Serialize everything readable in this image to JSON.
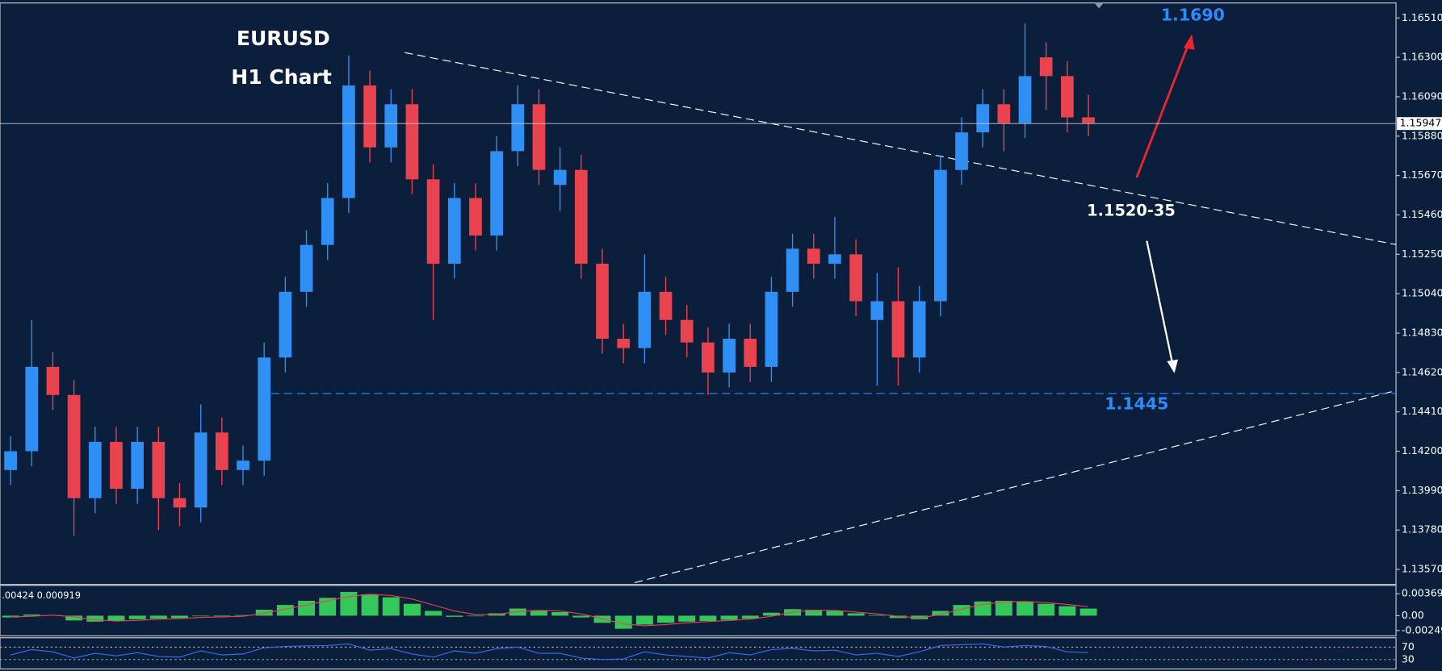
{
  "chart_data": {
    "type": "candlestick",
    "title": "EURUSD",
    "subtitle": "H1 Chart",
    "open": [
      1.141,
      1.142,
      1.1465,
      1.145,
      1.1395,
      1.1425,
      1.14,
      1.1425,
      1.1395,
      1.139,
      1.143,
      1.141,
      1.1415,
      1.147,
      1.1505,
      1.153,
      1.1555,
      1.1615,
      1.1582,
      1.1605,
      1.1565,
      1.152,
      1.1555,
      1.1535,
      1.158,
      1.1605,
      1.1562,
      1.157,
      1.152,
      1.148,
      1.1475,
      1.1505,
      1.149,
      1.1478,
      1.1462,
      1.148,
      1.1465,
      1.1505,
      1.1528,
      1.152,
      1.1525,
      1.149,
      1.15,
      1.147,
      1.15,
      1.157,
      1.159,
      1.1605,
      1.1595,
      1.163,
      1.162,
      1.1598
    ],
    "high": [
      1.1428,
      1.149,
      1.1473,
      1.1458,
      1.1433,
      1.1433,
      1.1433,
      1.1433,
      1.1403,
      1.1445,
      1.1438,
      1.1423,
      1.1478,
      1.1513,
      1.1538,
      1.1563,
      1.1631,
      1.1623,
      1.1613,
      1.1613,
      1.1573,
      1.1563,
      1.1563,
      1.1588,
      1.1615,
      1.1613,
      1.1582,
      1.1578,
      1.1528,
      1.1488,
      1.1525,
      1.1513,
      1.1498,
      1.1486,
      1.1488,
      1.1488,
      1.1513,
      1.1536,
      1.1536,
      1.1545,
      1.1533,
      1.1515,
      1.1518,
      1.1508,
      1.1578,
      1.1598,
      1.1613,
      1.1613,
      1.1648,
      1.1638,
      1.1628,
      1.161
    ],
    "low": [
      1.1402,
      1.1412,
      1.1442,
      1.1375,
      1.1387,
      1.1392,
      1.1392,
      1.1378,
      1.138,
      1.1382,
      1.1402,
      1.1402,
      1.1407,
      1.1462,
      1.1497,
      1.1522,
      1.1547,
      1.1574,
      1.1574,
      1.1557,
      1.149,
      1.1512,
      1.1527,
      1.1527,
      1.1572,
      1.1562,
      1.1548,
      1.1512,
      1.1472,
      1.1467,
      1.1467,
      1.1482,
      1.147,
      1.145,
      1.1454,
      1.1457,
      1.1457,
      1.1497,
      1.1512,
      1.1512,
      1.1492,
      1.1455,
      1.1455,
      1.1462,
      1.1492,
      1.1562,
      1.1582,
      1.158,
      1.1587,
      1.1602,
      1.159,
      1.1588
    ],
    "close": [
      1.142,
      1.1465,
      1.145,
      1.1395,
      1.1425,
      1.14,
      1.1425,
      1.1395,
      1.139,
      1.143,
      1.141,
      1.1415,
      1.147,
      1.1505,
      1.153,
      1.1555,
      1.1615,
      1.1582,
      1.1605,
      1.1565,
      1.152,
      1.1555,
      1.1535,
      1.158,
      1.1605,
      1.157,
      1.157,
      1.152,
      1.148,
      1.1475,
      1.1505,
      1.149,
      1.1478,
      1.1462,
      1.148,
      1.1465,
      1.1505,
      1.1528,
      1.152,
      1.1525,
      1.15,
      1.15,
      1.147,
      1.15,
      1.157,
      1.159,
      1.1605,
      1.1595,
      1.162,
      1.162,
      1.1598,
      1.1595
    ],
    "up_color": "#2f8ff5",
    "down_color": "#e8434f",
    "ylim": [
      1.1349,
      1.1659
    ],
    "yticks": [
      {
        "value": 1.1651,
        "label": "1.16510"
      },
      {
        "value": 1.163,
        "label": "1.16300"
      },
      {
        "value": 1.1609,
        "label": "1.16090"
      },
      {
        "value": 1.1588,
        "label": "1.15880"
      },
      {
        "value": 1.1567,
        "label": "1.15670"
      },
      {
        "value": 1.1546,
        "label": "1.15460"
      },
      {
        "value": 1.1525,
        "label": "1.15250"
      },
      {
        "value": 1.1504,
        "label": "1.15040"
      },
      {
        "value": 1.1483,
        "label": "1.14830"
      },
      {
        "value": 1.1462,
        "label": "1.14620"
      },
      {
        "value": 1.1441,
        "label": "1.14410"
      },
      {
        "value": 1.142,
        "label": "1.14200"
      },
      {
        "value": 1.1399,
        "label": "1.13990"
      },
      {
        "value": 1.1378,
        "label": "1.13780"
      },
      {
        "value": 1.1357,
        "label": "1.13570"
      }
    ],
    "current_price": 1.15947,
    "annotations": [
      "1.1690",
      "1.1520-35",
      "1.1445"
    ],
    "indicators": [
      {
        "type": "macd",
        "label": ".00424 0.000919",
        "histogram": [
          -0.0003,
          0.0002,
          0.0001,
          -0.0008,
          -0.001,
          -0.0009,
          -0.0006,
          -0.0005,
          -0.0004,
          -0.0001,
          -0.0001,
          0.0001,
          0.001,
          0.0018,
          0.0025,
          0.003,
          0.004,
          0.0036,
          0.0031,
          0.002,
          0.0008,
          -0.0002,
          -0.0001,
          0.0004,
          0.0012,
          0.0009,
          0.0006,
          -0.0003,
          -0.0012,
          -0.0022,
          -0.0015,
          -0.0012,
          -0.001,
          -0.0009,
          -0.0007,
          -0.0005,
          0.0005,
          0.0011,
          0.001,
          0.0008,
          0.0004,
          0.0001,
          -0.0004,
          -0.0006,
          0.0008,
          0.0018,
          0.0024,
          0.0025,
          0.0023,
          0.002,
          0.0016,
          0.0012
        ],
        "signal": [
          -0.0002,
          -0.0001,
          0.0001,
          -0.0002,
          -0.0007,
          -0.0009,
          -0.0008,
          -0.0006,
          -0.0005,
          -0.0003,
          -0.0002,
          -0.0001,
          0.0004,
          0.0011,
          0.0018,
          0.0025,
          0.0032,
          0.0036,
          0.0034,
          0.0028,
          0.0018,
          0.0008,
          0.0002,
          0.0002,
          0.0007,
          0.0009,
          0.0008,
          0.0003,
          -0.0005,
          -0.0014,
          -0.0017,
          -0.0015,
          -0.0012,
          -0.001,
          -0.0008,
          -0.0006,
          -0.0001,
          0.0006,
          0.0009,
          0.0009,
          0.0006,
          0.0003,
          -0.0001,
          -0.0004,
          0.0002,
          0.0011,
          0.0019,
          0.0023,
          0.0024,
          0.0022,
          0.0019,
          0.0015
        ],
        "histogram_color": "#34c759",
        "signal_color": "#e8434f",
        "ylim": [
          -0.0034,
          0.0051
        ],
        "yticks": [
          0.003692,
          {
            "value": 0,
            "label": "0.00"
          },
          -0.002493
        ]
      },
      {
        "type": "rsi",
        "values": [
          45,
          62,
          55,
          35,
          50,
          42,
          52,
          40,
          38,
          58,
          45,
          48,
          68,
          72,
          74,
          75,
          80,
          60,
          65,
          48,
          38,
          58,
          50,
          65,
          70,
          50,
          50,
          35,
          30,
          32,
          55,
          45,
          40,
          35,
          52,
          45,
          62,
          66,
          58,
          60,
          45,
          50,
          40,
          55,
          75,
          78,
          80,
          70,
          75,
          72,
          55,
          52
        ],
        "color": "#3a6df0",
        "ylim": [
          0,
          100
        ],
        "yticks": [
          70,
          30
        ]
      }
    ]
  }
}
